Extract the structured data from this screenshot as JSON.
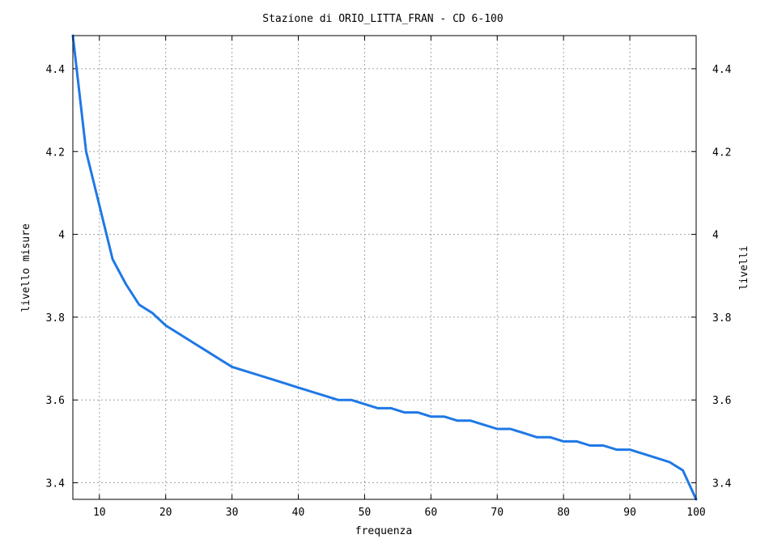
{
  "colors": {
    "series": "#1e78e6"
  },
  "chart_data": {
    "type": "line",
    "title": "Stazione di ORIO_LITTA_FRAN - CD 6-100",
    "xlabel": "frequenza",
    "ylabel": "livello misure",
    "y2label": "livelli",
    "xlim": [
      6,
      100
    ],
    "ylim": [
      3.36,
      4.48
    ],
    "grid": true,
    "x_ticks": [
      10,
      20,
      30,
      40,
      50,
      60,
      70,
      80,
      90,
      100
    ],
    "x_tick_labels": [
      "10",
      "20",
      "30",
      "40",
      "50",
      "60",
      "70",
      "80",
      "90",
      "100"
    ],
    "y_ticks": [
      3.4,
      3.6,
      3.8,
      4.0,
      4.2,
      4.4
    ],
    "y_tick_labels": [
      "3.4",
      "3.6",
      "3.8",
      "4",
      "4.2",
      "4.4"
    ],
    "series": [
      {
        "x": [
          6,
          8,
          10,
          12,
          14,
          16,
          18,
          20,
          22,
          24,
          26,
          28,
          30,
          32,
          34,
          36,
          38,
          40,
          42,
          44,
          46,
          48,
          50,
          52,
          54,
          56,
          58,
          60,
          62,
          64,
          66,
          68,
          70,
          72,
          74,
          76,
          78,
          80,
          82,
          84,
          86,
          88,
          90,
          92,
          94,
          96,
          98,
          100
        ],
        "values": [
          4.48,
          4.2,
          4.07,
          3.94,
          3.88,
          3.83,
          3.81,
          3.78,
          3.76,
          3.74,
          3.72,
          3.7,
          3.68,
          3.67,
          3.66,
          3.65,
          3.64,
          3.63,
          3.62,
          3.61,
          3.6,
          3.6,
          3.59,
          3.58,
          3.58,
          3.57,
          3.57,
          3.56,
          3.56,
          3.55,
          3.55,
          3.54,
          3.53,
          3.53,
          3.52,
          3.51,
          3.51,
          3.5,
          3.5,
          3.49,
          3.49,
          3.48,
          3.48,
          3.47,
          3.46,
          3.45,
          3.43,
          3.36
        ]
      }
    ]
  }
}
